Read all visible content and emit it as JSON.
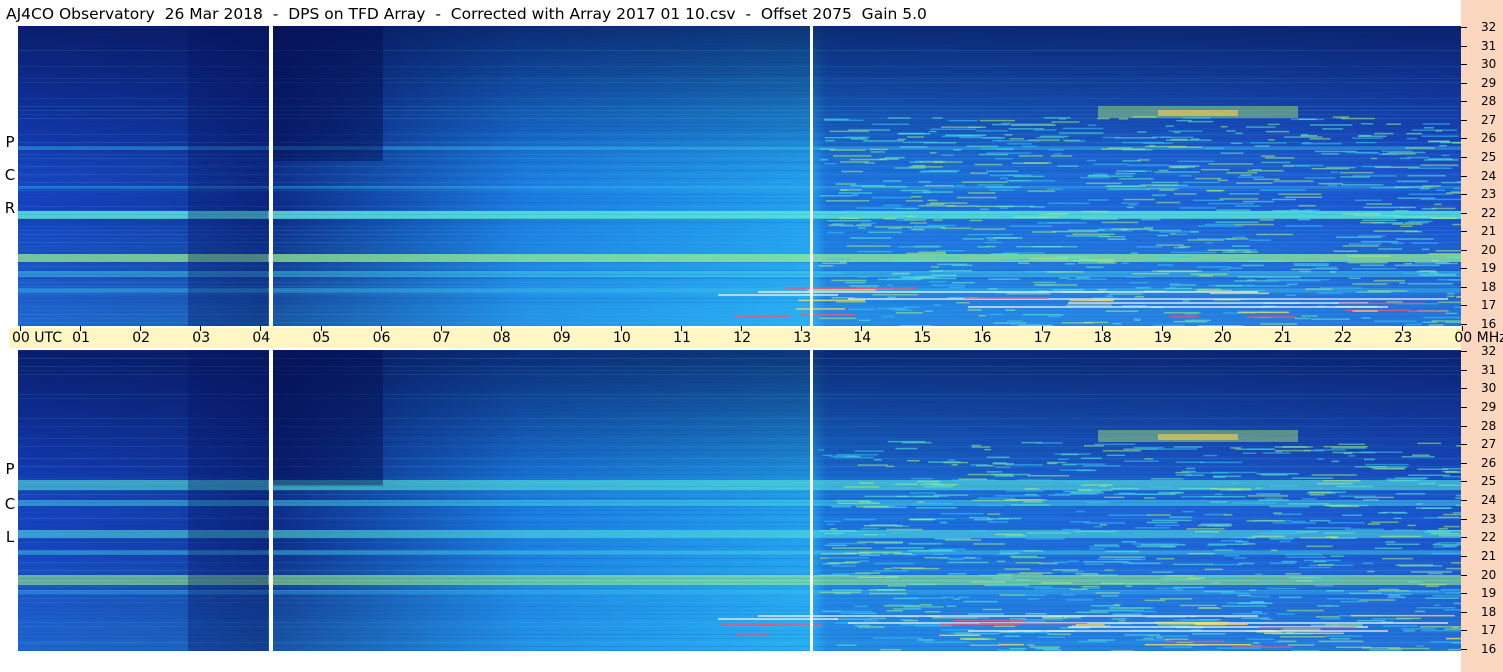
{
  "header": {
    "title": "AJ4CO Observatory  26 Mar 2018  -  DPS on TFD Array  -  Corrected with Array 2017 01 10.csv  -  Offset 2075  Gain 5.0"
  },
  "panels": {
    "top": {
      "polarization": [
        "R",
        "C",
        "P"
      ]
    },
    "bottom": {
      "polarization": [
        "L",
        "C",
        "P"
      ]
    }
  },
  "time_axis": {
    "labels": [
      "00 UTC",
      "01",
      "02",
      "03",
      "04",
      "05",
      "06",
      "07",
      "08",
      "09",
      "10",
      "11",
      "12",
      "13",
      "14",
      "15",
      "16",
      "17",
      "18",
      "19",
      "20",
      "21",
      "22",
      "23",
      "00 MHz"
    ]
  },
  "freq_axis": {
    "labels": [
      "32",
      "31",
      "30",
      "29",
      "28",
      "27",
      "26",
      "25",
      "24",
      "23",
      "22",
      "21",
      "20",
      "19",
      "18",
      "17",
      "16"
    ]
  },
  "colors": {
    "background_dark": "#0a1a6a",
    "background_mid": "#1f5ee0",
    "bright_band": "#5ef0d0",
    "timebar": "#fff6c4",
    "right_strip": "#fbd7c0"
  }
}
